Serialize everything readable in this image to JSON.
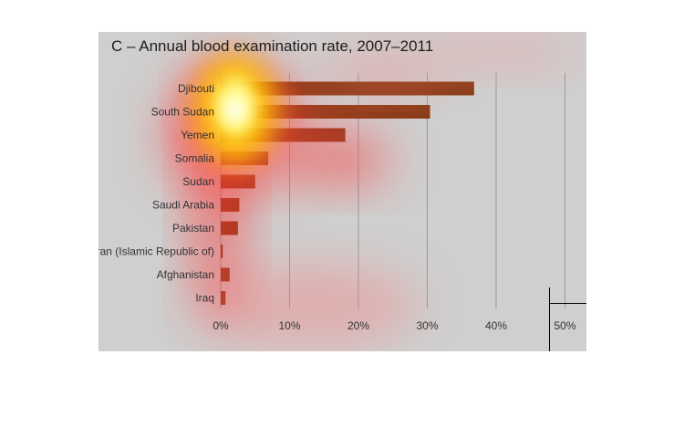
{
  "chart_data": {
    "type": "bar",
    "orientation": "horizontal",
    "title": "C – Annual blood examination rate, 2007–2011",
    "xlabel": "",
    "ylabel": "",
    "categories": [
      "Djibouti",
      "South Sudan",
      "Yemen",
      "Somalia",
      "Sudan",
      "Saudi Arabia",
      "Pakistan",
      "Iran (Islamic Republic of)",
      "Afghanistan",
      "Iraq"
    ],
    "values": [
      36.8,
      30.4,
      18.1,
      6.9,
      5.0,
      2.7,
      2.5,
      0.3,
      1.3,
      0.7
    ],
    "x_unit": "%",
    "xlim": [
      0,
      50
    ],
    "xticks": [
      "0%",
      "10%",
      "20%",
      "30%",
      "40%",
      "50%"
    ],
    "grid": "vertical",
    "bar_color": "#8a3e1a",
    "background_color": "#cfcfcf",
    "heatmap_overlay": true
  }
}
